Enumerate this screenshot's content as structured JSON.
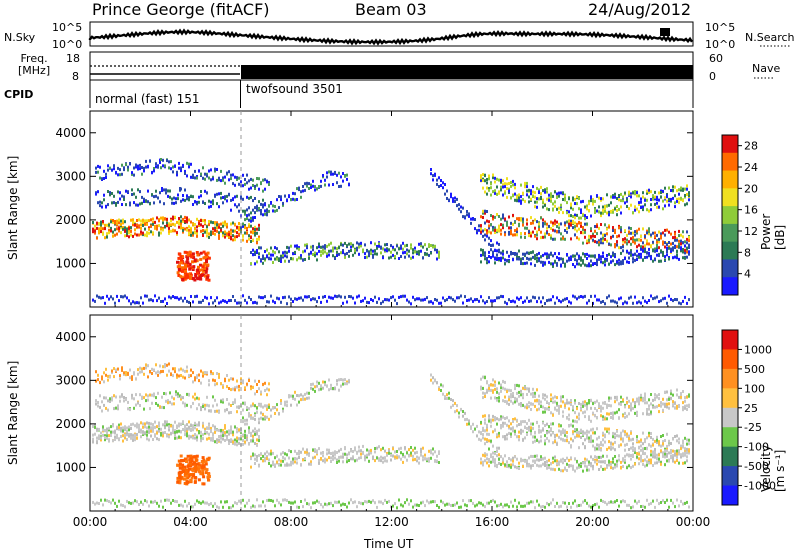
{
  "header": {
    "station": "Prince George (fitACF)",
    "beam": "Beam 03",
    "date": "24/Aug/2012"
  },
  "side_labels": {
    "nsky": "N.Sky",
    "nsearch": "N.Search",
    "freq_line1": "Freq.",
    "freq_line2": "[MHz]",
    "nave": "Nave",
    "cpid": "CPID",
    "left_scale_top": "10^5",
    "left_scale_bottom": "10^0",
    "right_scale_top": "10^5",
    "right_scale_bottom": "10^0",
    "freq_top": "18",
    "freq_bottom": "8",
    "nave_top": "60",
    "nave_bottom": "0"
  },
  "cpid_segments": [
    {
      "label": "normal (fast) 151",
      "start_hour": 0,
      "end_hour": 6.0
    },
    {
      "label": "twofsound 3501",
      "start_hour": 6.0,
      "end_hour": 24
    }
  ],
  "chart_data": [
    {
      "type": "heatmap",
      "title": "",
      "xlabel": "Time UT",
      "ylabel": "Slant Range [km]",
      "xlim": [
        0,
        24
      ],
      "ylim": [
        0,
        4500
      ],
      "x_ticks": [
        "00:00",
        "04:00",
        "08:00",
        "12:00",
        "16:00",
        "20:00",
        "00:00"
      ],
      "y_ticks": [
        "1000",
        "2000",
        "3000",
        "4000"
      ],
      "colorbar": {
        "label": "Power [dB]",
        "ticks": [
          "4",
          "8",
          "12",
          "16",
          "20",
          "24",
          "28"
        ],
        "range": [
          0,
          30
        ],
        "colors": [
          "#1a1aff",
          "#2a48b0",
          "#2c7a55",
          "#4a9a5a",
          "#8fcc39",
          "#f0e020",
          "#ffb000",
          "#ff6a00",
          "#e01010"
        ]
      }
    },
    {
      "type": "heatmap",
      "title": "",
      "xlabel": "Time UT",
      "ylabel": "Slant Range [km]",
      "xlim": [
        0,
        24
      ],
      "ylim": [
        0,
        4500
      ],
      "x_ticks": [
        "00:00",
        "04:00",
        "08:00",
        "12:00",
        "16:00",
        "20:00",
        "00:00"
      ],
      "y_ticks": [
        "1000",
        "2000",
        "3000",
        "4000"
      ],
      "colorbar": {
        "label": "Velocity [m s⁻¹]",
        "ticks": [
          "1000",
          "500",
          "100",
          "25",
          "-25",
          "-100",
          "-500",
          "-1000"
        ],
        "colors": [
          "#1a1aff",
          "#2a48b0",
          "#2c7a55",
          "#6cc84a",
          "#c8c8c8",
          "#ffc040",
          "#ff9020",
          "#ff5a00",
          "#e01010"
        ]
      }
    }
  ]
}
